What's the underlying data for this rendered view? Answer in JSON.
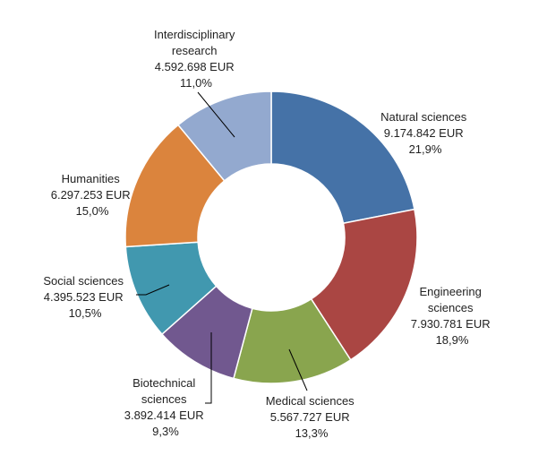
{
  "chart_data": {
    "type": "pie",
    "donut": true,
    "start_angle_deg": 0,
    "direction": "clockwise",
    "slices": [
      {
        "name": "Natural sciences",
        "amount": "9.174.842 EUR",
        "percent": "21,9%",
        "value": 21.9,
        "color": "#4572A7"
      },
      {
        "name": "Engineering sciences",
        "amount": "7.930.781 EUR",
        "percent": "18,9%",
        "value": 18.9,
        "color": "#AA4643"
      },
      {
        "name": "Medical sciences",
        "amount": "5.567.727 EUR",
        "percent": "13,3%",
        "value": 13.3,
        "color": "#89A54E"
      },
      {
        "name": "Biotechnical sciences",
        "amount": "3.892.414 EUR",
        "percent": "9,3%",
        "value": 9.3,
        "color": "#71588F"
      },
      {
        "name": "Social sciences",
        "amount": "4.395.523 EUR",
        "percent": "10,5%",
        "value": 10.5,
        "color": "#4198AF"
      },
      {
        "name": "Humanities",
        "amount": "6.297.253 EUR",
        "percent": "15,0%",
        "value": 15.0,
        "color": "#DB843D"
      },
      {
        "name": "Interdisciplinary research",
        "amount": "4.592.698 EUR",
        "percent": "11,0%",
        "value": 11.0,
        "color": "#93A9CF"
      }
    ]
  }
}
